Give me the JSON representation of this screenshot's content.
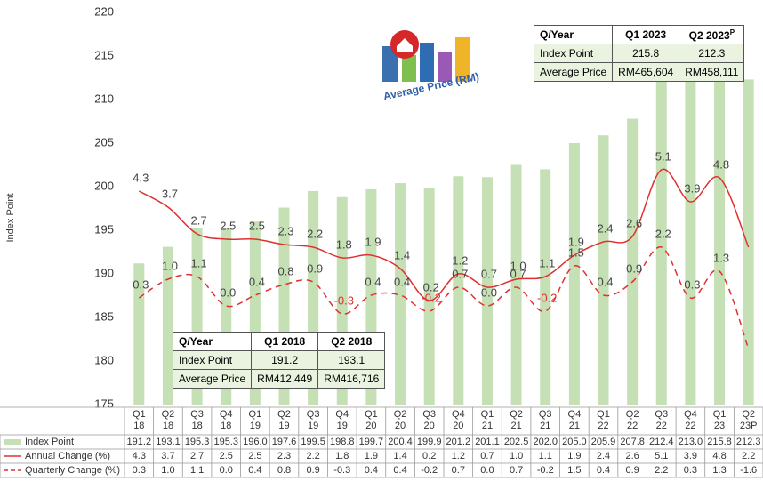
{
  "chart_data": {
    "type": "bar",
    "y_label": "Index Point",
    "categories": [
      "Q1\n18",
      "Q2\n18",
      "Q3\n18",
      "Q4\n18",
      "Q1\n19",
      "Q2\n19",
      "Q3\n19",
      "Q4\n19",
      "Q1\n20",
      "Q2\n20",
      "Q3\n20",
      "Q4\n20",
      "Q1\n21",
      "Q2\n21",
      "Q3\n21",
      "Q4\n21",
      "Q1\n22",
      "Q2\n22",
      "Q3\n22",
      "Q4\n22",
      "Q1\n23",
      "Q2\n23P"
    ],
    "ylim": [
      175,
      220
    ],
    "yticks": [
      175,
      180,
      185,
      190,
      195,
      200,
      205,
      210,
      215,
      220
    ],
    "y2lim": [
      -3.7,
      11
    ],
    "series": [
      {
        "name": "Index Point",
        "type": "bar",
        "color": "#c5e0b4",
        "values": [
          191.2,
          193.1,
          195.3,
          195.3,
          196.0,
          197.6,
          199.5,
          198.8,
          199.7,
          200.4,
          199.9,
          201.2,
          201.1,
          202.5,
          202.0,
          205.0,
          205.9,
          207.8,
          212.4,
          213.0,
          215.8,
          212.3
        ],
        "value_labels": [
          "191.2",
          "193.1",
          "195.3",
          "195.3",
          "196.0",
          "197.6",
          "199.5",
          "198.8",
          "199.7",
          "200.4",
          "199.9",
          "201.2",
          "201.1",
          "202.5",
          "202.0",
          "205.0",
          "205.9",
          "207.8",
          "212.4",
          "213.0",
          "215.8",
          "212.3"
        ]
      },
      {
        "name": "Annual Change (%)",
        "type": "line",
        "axis": "y2",
        "color": "#e03030",
        "dashed": false,
        "values": [
          4.3,
          3.7,
          2.7,
          2.5,
          2.5,
          2.3,
          2.2,
          1.8,
          1.9,
          1.4,
          0.2,
          1.2,
          0.7,
          1.0,
          1.1,
          1.9,
          2.4,
          2.6,
          5.1,
          3.9,
          4.8,
          2.2
        ],
        "value_labels": [
          "4.3",
          "3.7",
          "2.7",
          "2.5",
          "2.5",
          "2.3",
          "2.2",
          "1.8",
          "1.9",
          "1.4",
          "0.2",
          "1.2",
          "0.7",
          "1.0",
          "1.1",
          "1.9",
          "2.4",
          "2.6",
          "5.1",
          "3.9",
          "4.8",
          "2.2"
        ]
      },
      {
        "name": "Quarterly Change (%)",
        "type": "line",
        "axis": "y2",
        "color": "#e03030",
        "dashed": true,
        "values": [
          0.3,
          1.0,
          1.1,
          0.0,
          0.4,
          0.8,
          0.9,
          -0.3,
          0.4,
          0.4,
          -0.2,
          0.7,
          0.0,
          0.7,
          -0.2,
          1.5,
          0.4,
          0.9,
          2.2,
          0.3,
          1.3,
          -1.6
        ],
        "value_labels": [
          "0.3",
          "1.0",
          "1.1",
          "0.0",
          "0.4",
          "0.8",
          "0.9",
          "-0.3",
          "0.4",
          "0.4",
          "-0.2",
          "0.7",
          "0.0",
          "0.7",
          "-0.2",
          "1.5",
          "0.4",
          "0.9",
          "2.2",
          "0.3",
          "1.3",
          "-1.6"
        ]
      }
    ]
  },
  "logo": {
    "text": "Average Price (RM)"
  },
  "inset_tables": [
    {
      "header": [
        "Q/Year",
        "Q1 2023",
        "Q2 2023"
      ],
      "header_note": "P",
      "rows": [
        [
          "Index Point",
          "215.8",
          "212.3"
        ],
        [
          "Average Price",
          "RM465,604",
          "RM458,111"
        ]
      ]
    },
    {
      "header": [
        "Q/Year",
        "Q1 2018",
        "Q2 2018"
      ],
      "rows": [
        [
          "Index Point",
          "191.2",
          "193.1"
        ],
        [
          "Average Price",
          "RM412,449",
          "RM416,716"
        ]
      ]
    }
  ]
}
